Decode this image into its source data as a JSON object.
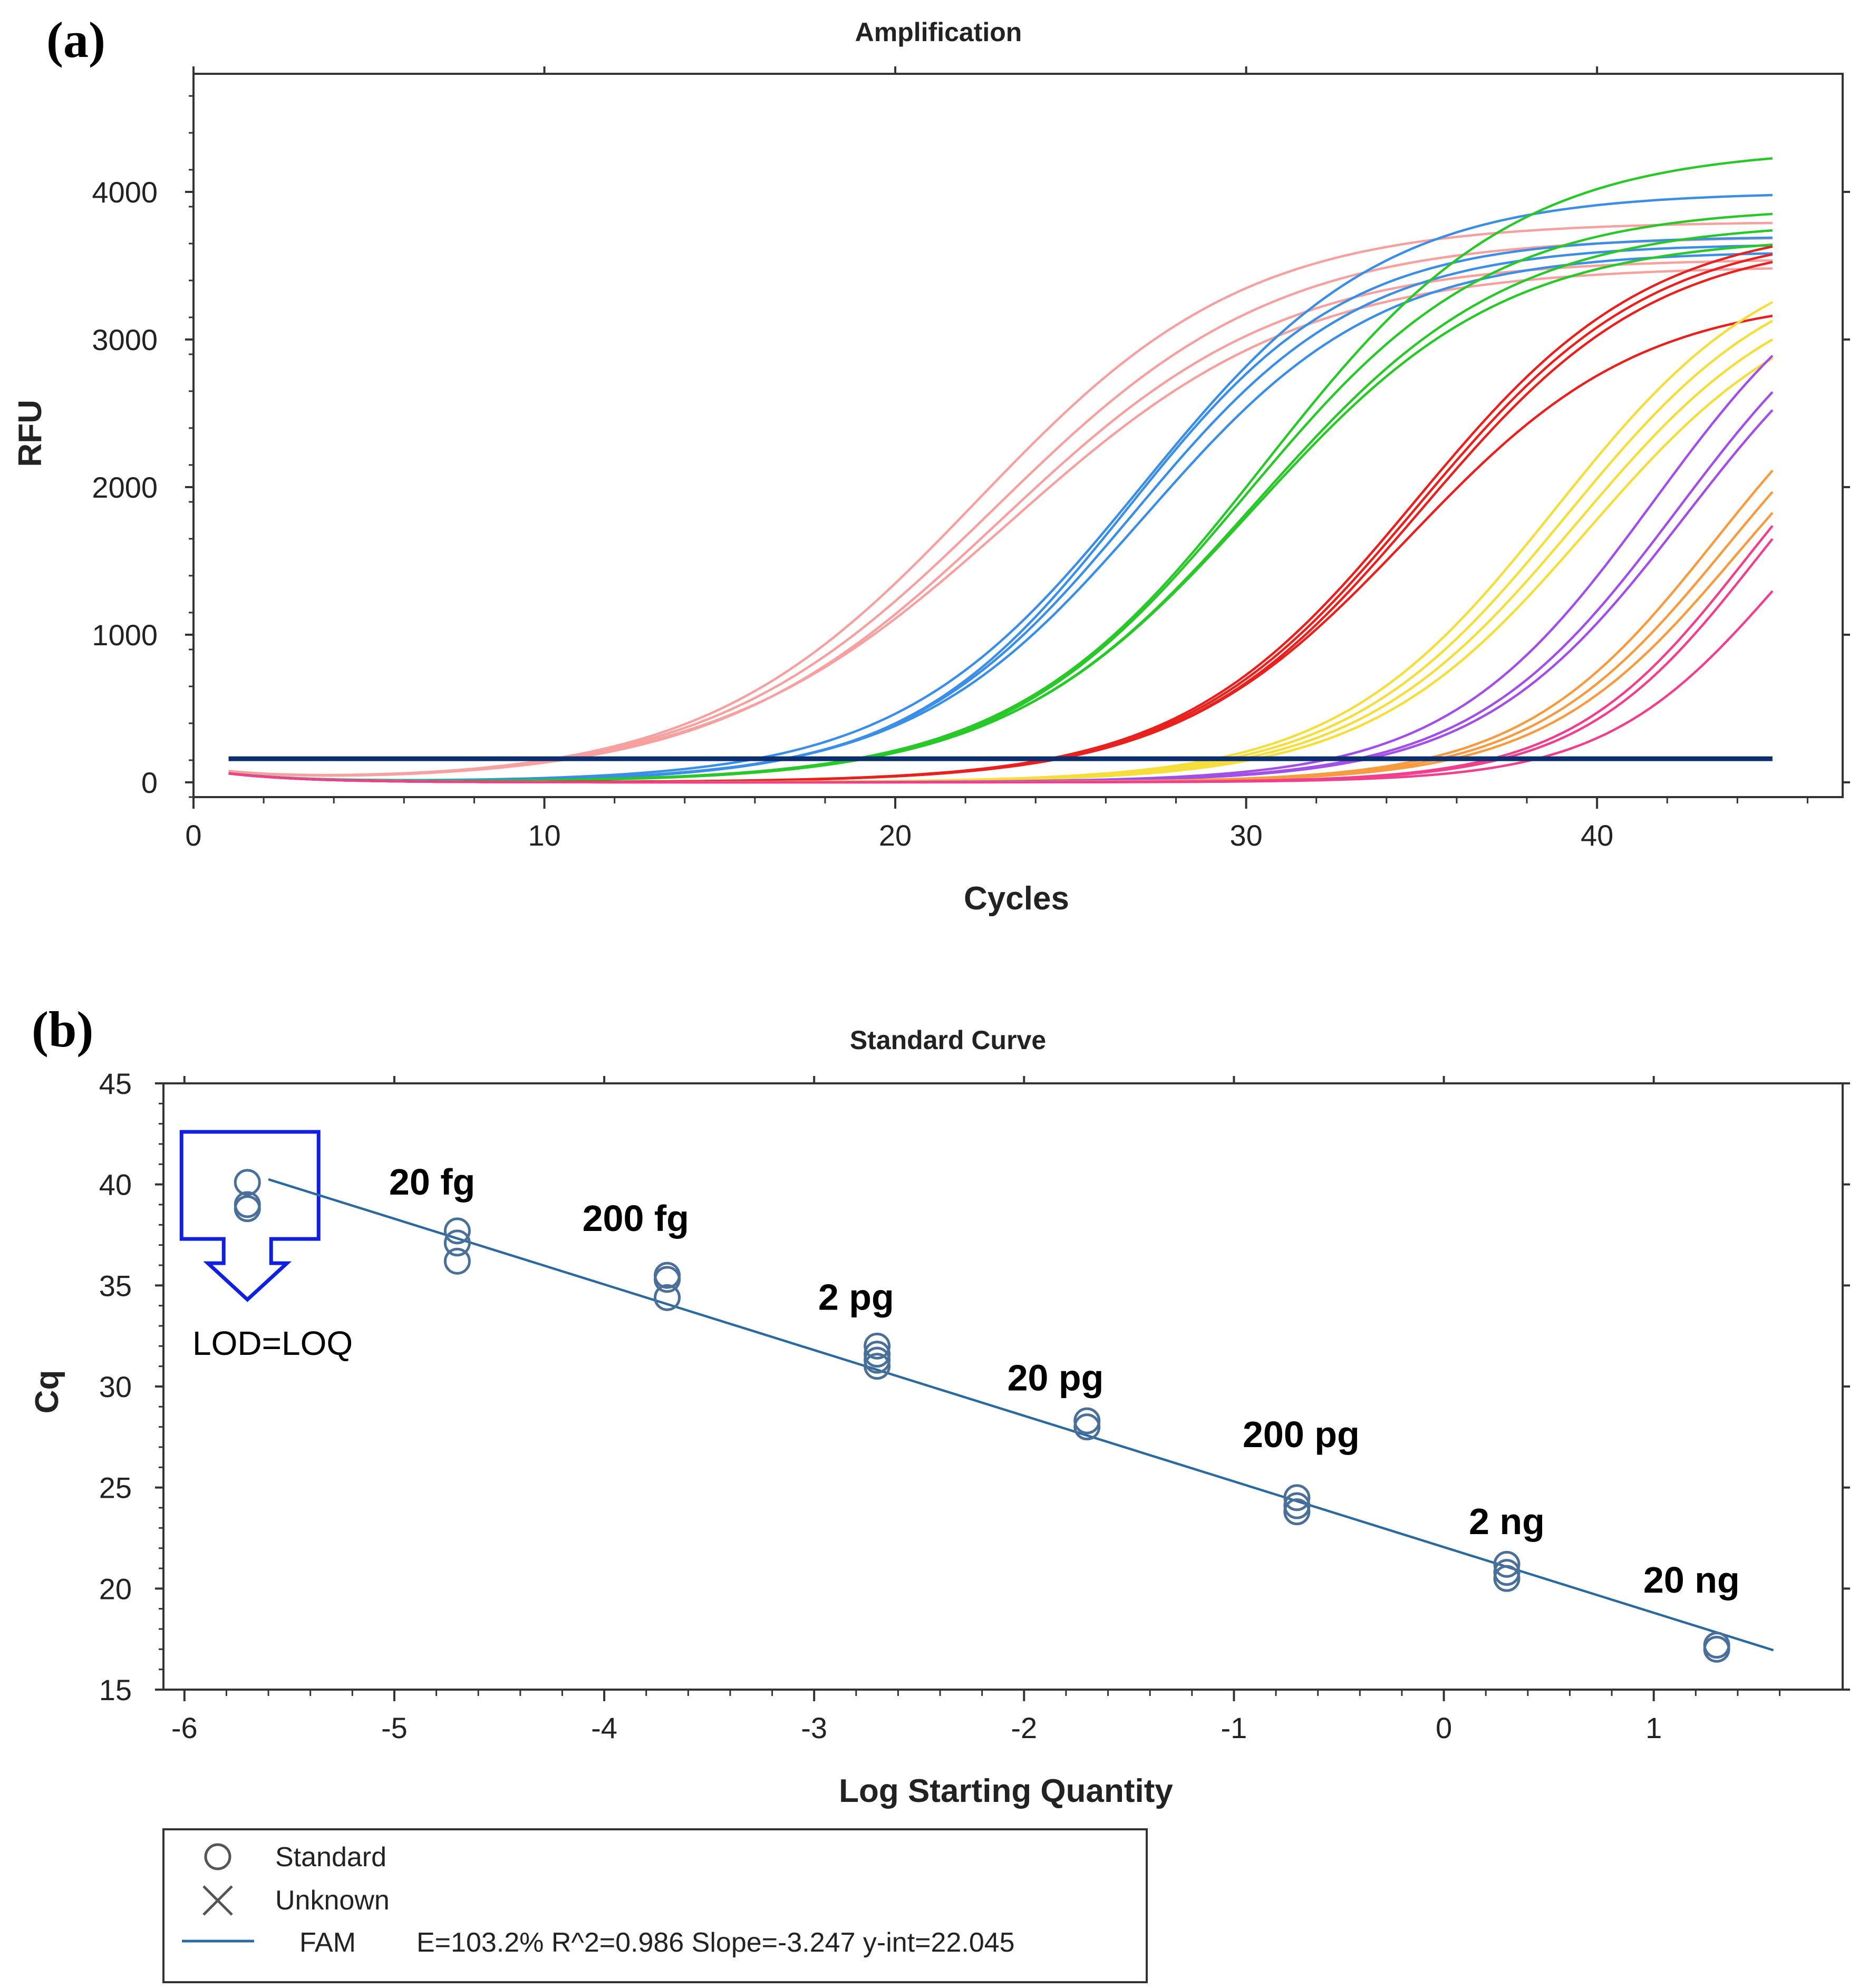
{
  "panels": {
    "a": "(a)",
    "b": "(b)"
  },
  "chart_data": [
    {
      "type": "line",
      "title": "Amplification",
      "xlabel": "Cycles",
      "ylabel": "RFU",
      "xlim": [
        0,
        47
      ],
      "ylim": [
        -100,
        4800
      ],
      "xticks": [
        0,
        10,
        20,
        30,
        40
      ],
      "yticks": [
        0,
        1000,
        2000,
        3000,
        4000
      ],
      "threshold": {
        "y": 160,
        "x_from": 1,
        "x_to": 45,
        "color": "#0b2f6e"
      },
      "groups": [
        {
          "color": "#f7a0a0",
          "curves": [
            {
              "mid": 22.3,
              "plateau": 3800,
              "k": 0.26
            },
            {
              "mid": 22.8,
              "plateau": 3700,
              "k": 0.25
            },
            {
              "mid": 23.0,
              "plateau": 3550,
              "k": 0.25
            },
            {
              "mid": 23.2,
              "plateau": 3500,
              "k": 0.24
            }
          ]
        },
        {
          "color": "#3a8ee6",
          "curves": [
            {
              "mid": 27.0,
              "plateau": 4000,
              "k": 0.29
            },
            {
              "mid": 26.6,
              "plateau": 3700,
              "k": 0.32
            },
            {
              "mid": 26.8,
              "plateau": 3650,
              "k": 0.31
            },
            {
              "mid": 27.1,
              "plateau": 3600,
              "k": 0.3
            }
          ]
        },
        {
          "color": "#28c828",
          "curves": [
            {
              "mid": 30.5,
              "plateau": 4300,
              "k": 0.28
            },
            {
              "mid": 30.0,
              "plateau": 3900,
              "k": 0.29
            },
            {
              "mid": 30.3,
              "plateau": 3800,
              "k": 0.28
            },
            {
              "mid": 30.2,
              "plateau": 3700,
              "k": 0.28
            }
          ]
        },
        {
          "color": "#e8211e",
          "curves": [
            {
              "mid": 34.8,
              "plateau": 3800,
              "k": 0.3
            },
            {
              "mid": 34.9,
              "plateau": 3750,
              "k": 0.3
            },
            {
              "mid": 35.0,
              "plateau": 3700,
              "k": 0.3
            },
            {
              "mid": 34.6,
              "plateau": 3300,
              "k": 0.3
            }
          ]
        },
        {
          "color": "#f5de3a",
          "curves": [
            {
              "mid": 38.8,
              "plateau": 3700,
              "k": 0.32
            },
            {
              "mid": 39.1,
              "plateau": 3600,
              "k": 0.32
            },
            {
              "mid": 39.4,
              "plateau": 3500,
              "k": 0.32
            },
            {
              "mid": 39.7,
              "plateau": 3400,
              "k": 0.32
            }
          ]
        },
        {
          "color": "#a24fe8",
          "curves": [
            {
              "mid": 41.6,
              "plateau": 3800,
              "k": 0.34
            },
            {
              "mid": 42.3,
              "plateau": 3700,
              "k": 0.34
            },
            {
              "mid": 42.5,
              "plateau": 3600,
              "k": 0.34
            }
          ]
        },
        {
          "color": "#f79a40",
          "curves": [
            {
              "mid": 43.4,
              "plateau": 3300,
              "k": 0.36
            },
            {
              "mid": 43.7,
              "plateau": 3200,
              "k": 0.36
            },
            {
              "mid": 44.0,
              "plateau": 3100,
              "k": 0.36
            }
          ]
        },
        {
          "color": "#ef3f8d",
          "curves": [
            {
              "mid": 44.2,
              "plateau": 3000,
              "k": 0.4
            },
            {
              "mid": 44.5,
              "plateau": 3000,
              "k": 0.4
            },
            {
              "mid": 45.2,
              "plateau": 2700,
              "k": 0.4
            }
          ]
        }
      ]
    },
    {
      "type": "scatter",
      "title": "Standard Curve",
      "xlabel": "Log Starting Quantity",
      "ylabel": "Cq",
      "xlim": [
        -6.1,
        1.9
      ],
      "ylim": [
        15,
        45
      ],
      "xticks": [
        -6,
        -5,
        -4,
        -3,
        -2,
        -1,
        0,
        1
      ],
      "yticks": [
        15,
        20,
        25,
        30,
        35,
        40,
        45
      ],
      "fit_line": {
        "x": [
          -5.6,
          1.57
        ],
        "y": [
          40.25,
          16.95
        ]
      },
      "points": [
        {
          "x": -5.7,
          "y": 40.1
        },
        {
          "x": -5.7,
          "y": 39.0
        },
        {
          "x": -5.7,
          "y": 38.8
        },
        {
          "x": -4.7,
          "y": 37.7
        },
        {
          "x": -4.7,
          "y": 37.1
        },
        {
          "x": -4.7,
          "y": 36.2
        },
        {
          "x": -3.7,
          "y": 35.5
        },
        {
          "x": -3.7,
          "y": 35.3
        },
        {
          "x": -3.7,
          "y": 34.4
        },
        {
          "x": -2.7,
          "y": 32.0
        },
        {
          "x": -2.7,
          "y": 31.6
        },
        {
          "x": -2.7,
          "y": 31.3
        },
        {
          "x": -2.7,
          "y": 31.0
        },
        {
          "x": -1.7,
          "y": 28.3
        },
        {
          "x": -1.7,
          "y": 28.0
        },
        {
          "x": -0.7,
          "y": 24.5
        },
        {
          "x": -0.7,
          "y": 24.1
        },
        {
          "x": -0.7,
          "y": 23.8
        },
        {
          "x": 0.3,
          "y": 21.2
        },
        {
          "x": 0.3,
          "y": 20.8
        },
        {
          "x": 0.3,
          "y": 20.5
        },
        {
          "x": 1.3,
          "y": 17.2
        },
        {
          "x": 1.3,
          "y": 17.0
        }
      ],
      "annotations": [
        {
          "text": "20 fg",
          "x": -4.82,
          "y": 39.5
        },
        {
          "text": "200 fg",
          "x": -3.85,
          "y": 37.7
        },
        {
          "text": "2 pg",
          "x": -2.8,
          "y": 33.8
        },
        {
          "text": "20 pg",
          "x": -1.85,
          "y": 29.8
        },
        {
          "text": "200 pg",
          "x": -0.68,
          "y": 27.0
        },
        {
          "text": "2 ng",
          "x": 0.3,
          "y": 22.7
        },
        {
          "text": "20 ng",
          "x": 1.18,
          "y": 19.8
        }
      ],
      "lod_label": "LOD=LOQ",
      "legend": {
        "entries": [
          {
            "symbol": "circle",
            "label": "Standard"
          },
          {
            "symbol": "cross",
            "label": "Unknown"
          },
          {
            "symbol": "line",
            "label": "FAM",
            "stats": "E=103.2% R^2=0.986 Slope=-3.247 y-int=22.045"
          }
        ]
      },
      "colors": {
        "point": "#4a6f98",
        "line": "#2b6aa0",
        "lod_box": "#1020e0"
      }
    }
  ]
}
